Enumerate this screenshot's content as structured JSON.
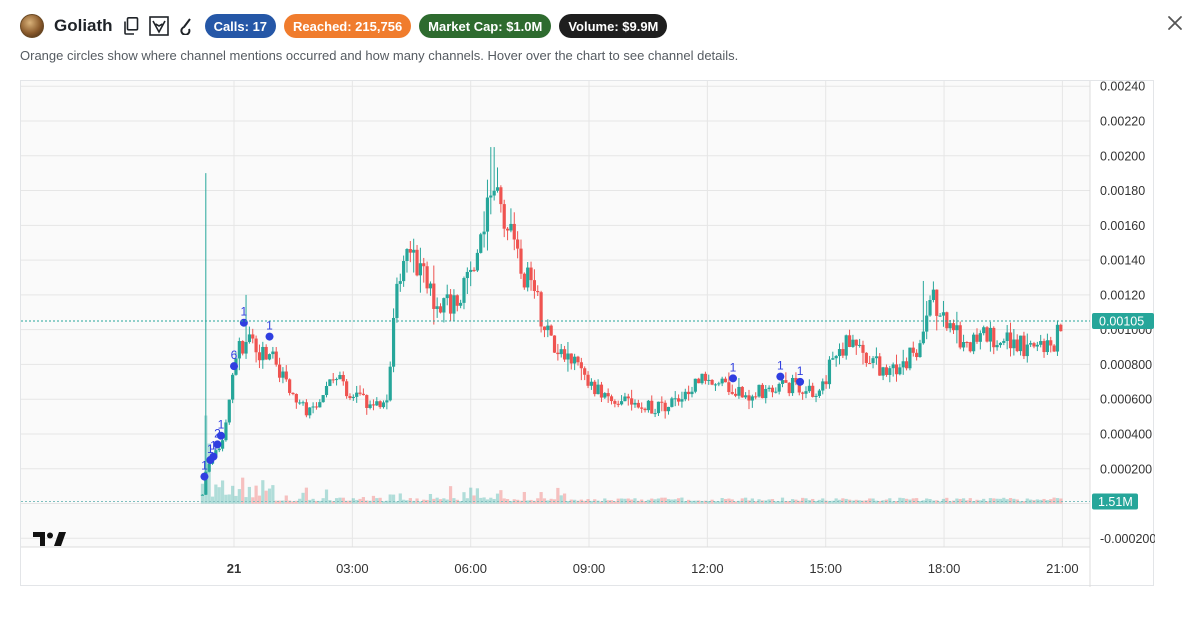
{
  "header": {
    "token_name": "Goliath",
    "icons": [
      "token-logo",
      "copy-icon",
      "explorer-lion-icon",
      "pump-icon",
      "close-icon"
    ],
    "badges": [
      {
        "name": "calls",
        "label": "Calls: 17",
        "color": "#2557a7"
      },
      {
        "name": "reached",
        "label": "Reached: 215,756",
        "color": "#f07c2d"
      },
      {
        "name": "market-cap",
        "label": "Market Cap: $1.0M",
        "color": "#2e6b2f"
      },
      {
        "name": "volume",
        "label": "Volume: $9.9M",
        "color": "#1e1e1e"
      }
    ]
  },
  "subtitle": "Orange circles show where channel mentions occurred and how many channels. Hover over the chart to see channel details.",
  "chart_data": {
    "type": "candlestick",
    "y_ticks": [
      "0.00240",
      "0.00220",
      "0.00200",
      "0.00180",
      "0.00160",
      "0.00140",
      "0.00120",
      "0.001000",
      "0.000800",
      "0.000600",
      "0.000400",
      "0.000200",
      "0.0000",
      "-0.0002000"
    ],
    "y_tick_values": [
      0.0024,
      0.0022,
      0.002,
      0.0018,
      0.0016,
      0.0014,
      0.0012,
      0.001,
      0.0008,
      0.0006,
      0.0004,
      0.0002,
      0.0,
      -0.0002
    ],
    "x_ticks": [
      "21",
      "03:00",
      "06:00",
      "09:00",
      "12:00",
      "15:00",
      "18:00",
      "21:00"
    ],
    "x_tick_hours": [
      0,
      3,
      6,
      9,
      12,
      15,
      18,
      21
    ],
    "x_range_hours": [
      -5.4,
      21.7
    ],
    "y_range": [
      -0.00025,
      0.00243
    ],
    "current_price_label": "0.00105",
    "current_price": 0.00105,
    "volume_label": "1.51M",
    "grid": true,
    "colors": {
      "up": "#26a69a",
      "down": "#ef5350",
      "mention": "#2f3ee0",
      "price_line": "#26a69a"
    },
    "mentions": [
      {
        "t": -0.75,
        "price": 0.000155,
        "count": "1"
      },
      {
        "t": -0.6,
        "price": 0.00025,
        "count": "1"
      },
      {
        "t": -0.52,
        "price": 0.00027,
        "count": "1"
      },
      {
        "t": -0.42,
        "price": 0.00034,
        "count": "2"
      },
      {
        "t": -0.33,
        "price": 0.00039,
        "count": "1"
      },
      {
        "t": 0.0,
        "price": 0.00079,
        "count": "6"
      },
      {
        "t": 0.25,
        "price": 0.00104,
        "count": "1"
      },
      {
        "t": 0.9,
        "price": 0.00096,
        "count": "1"
      },
      {
        "t": 12.65,
        "price": 0.00072,
        "count": "1"
      },
      {
        "t": 13.85,
        "price": 0.00073,
        "count": "1"
      },
      {
        "t": 14.35,
        "price": 0.0007,
        "count": "1"
      }
    ]
  }
}
